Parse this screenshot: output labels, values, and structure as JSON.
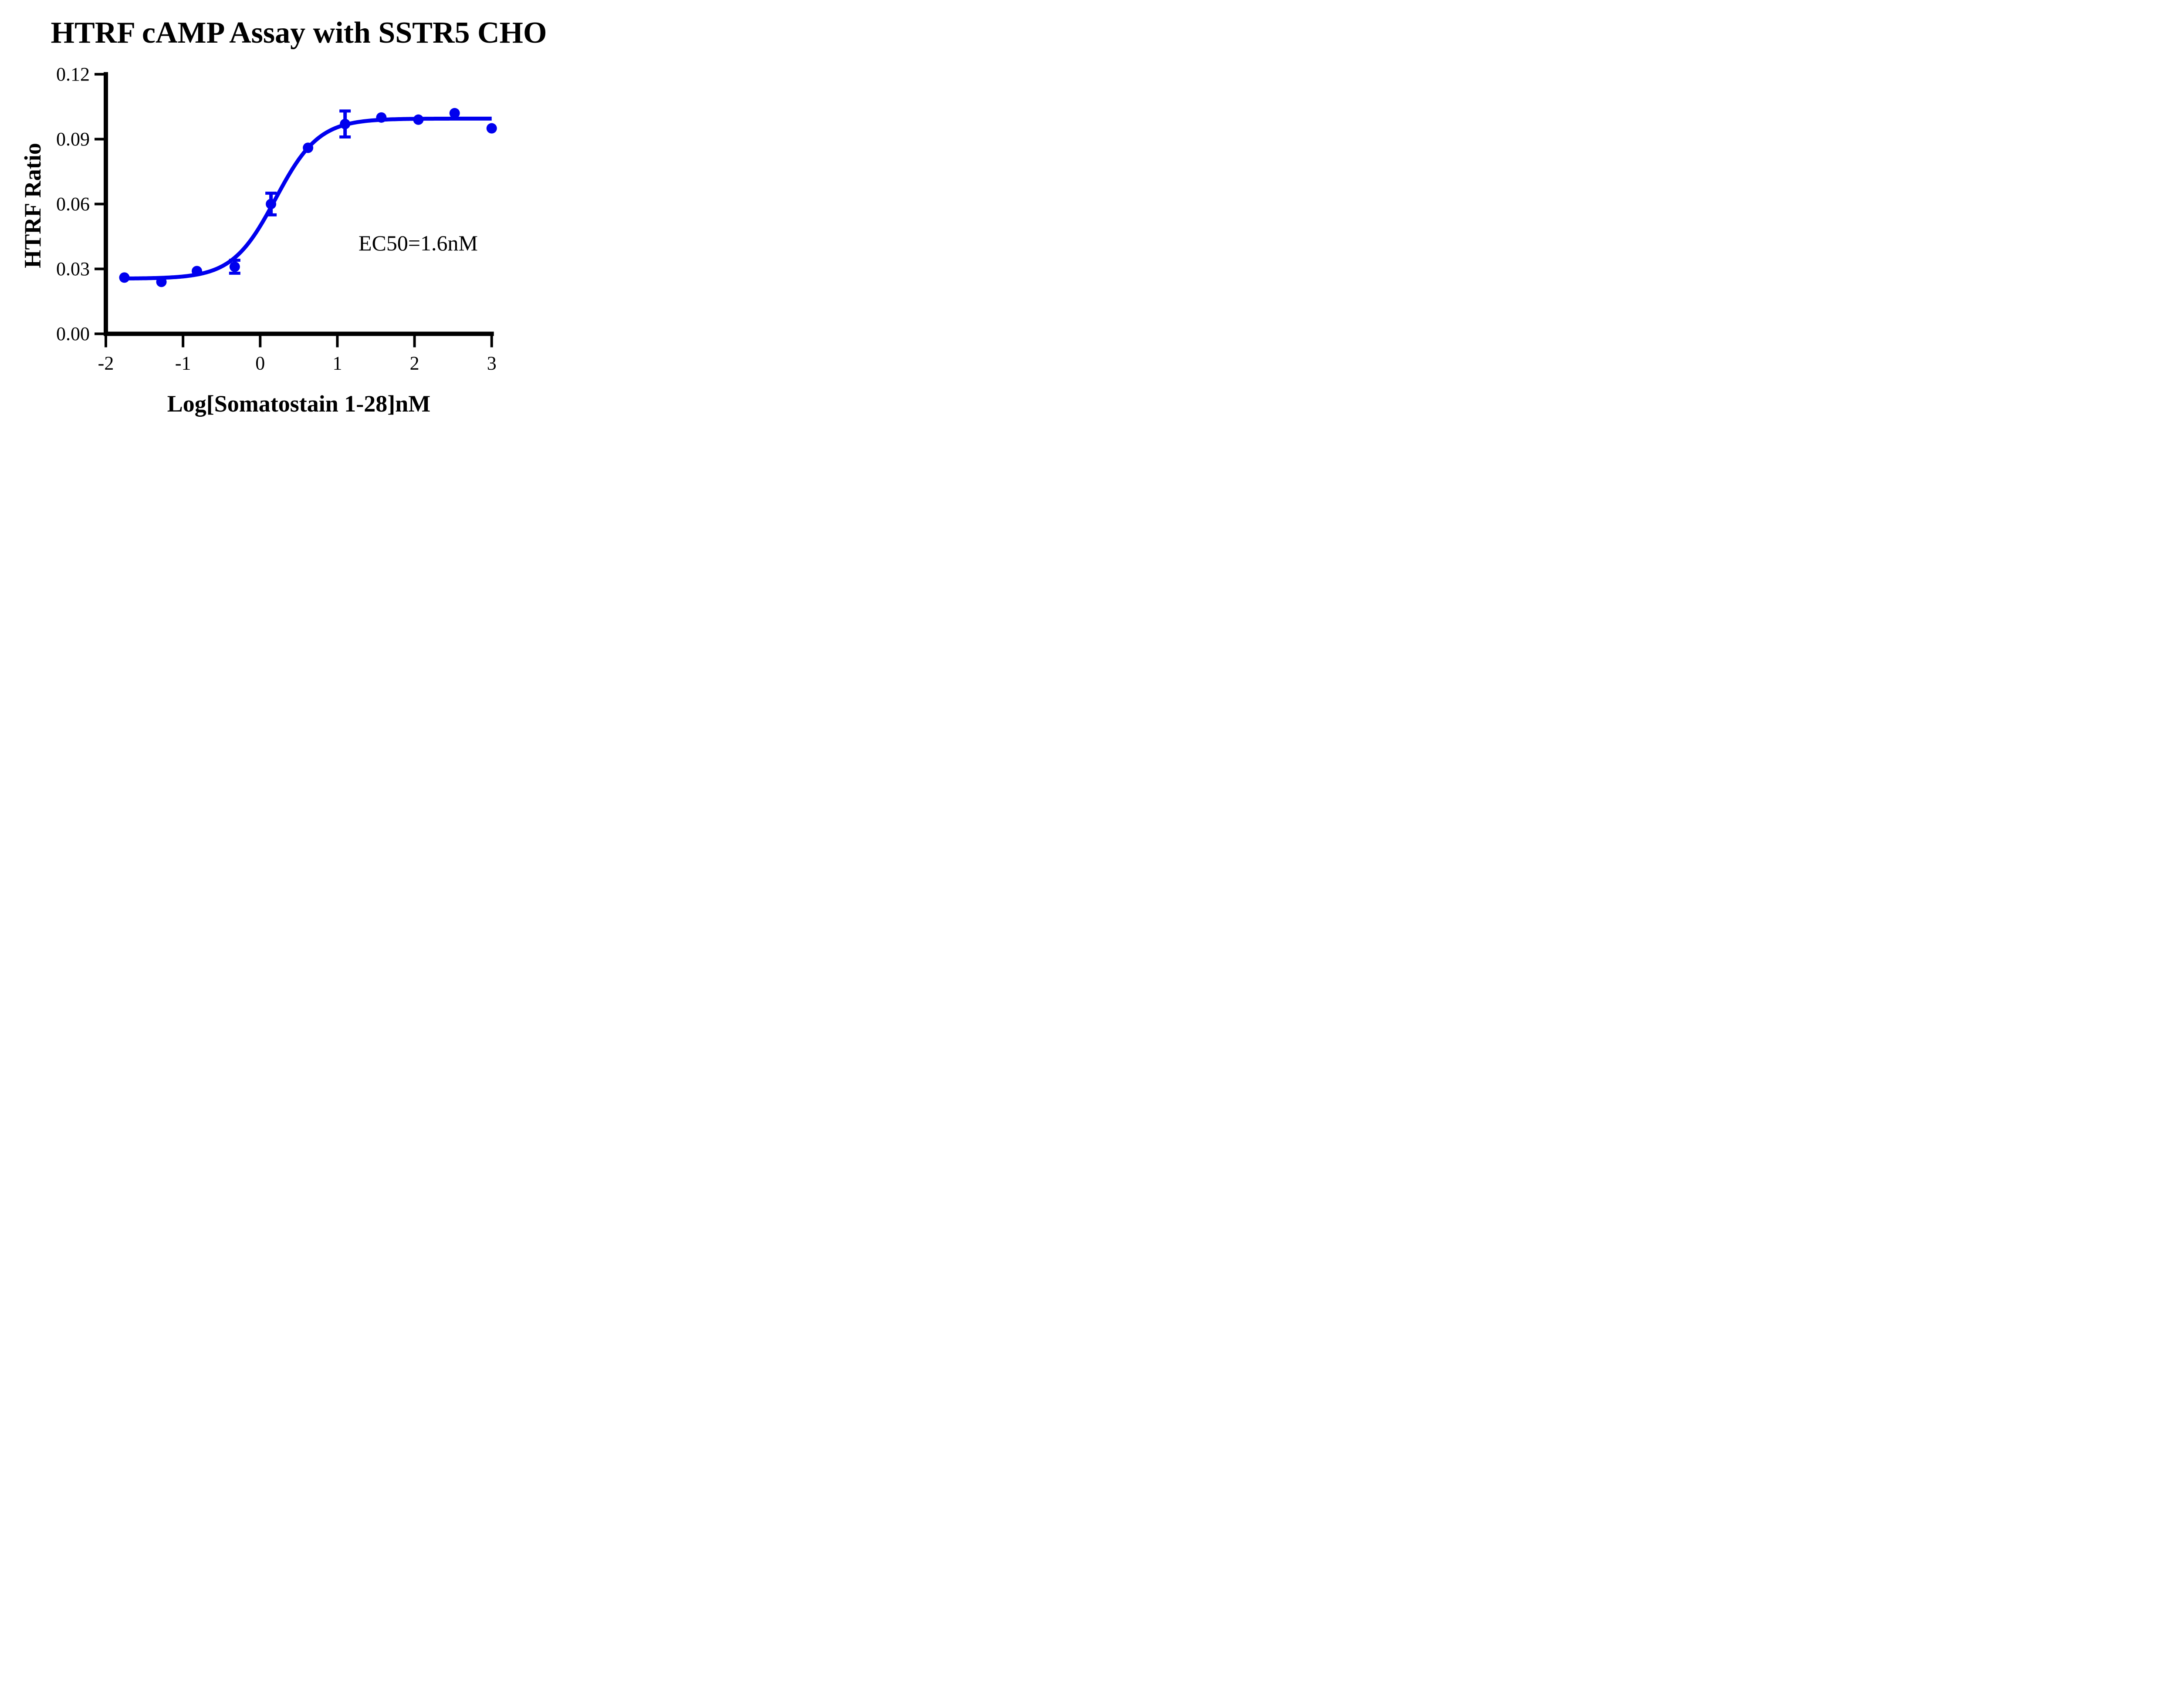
{
  "title": "HTRF cAMP Assay with SSTR5 CHO",
  "axes": {
    "x": {
      "label": "Log[Somatostain 1-28]nM",
      "tick_labels": [
        "-2",
        "-1",
        "0",
        "1",
        "2",
        "3"
      ]
    },
    "y": {
      "label": "HTRF Ratio",
      "tick_labels": [
        "0.00",
        "0.03",
        "0.06",
        "0.09",
        "0.12"
      ]
    }
  },
  "annotation": {
    "ec50": "EC50=1.6nM"
  },
  "colors": {
    "series": "#0000EE",
    "axis": "#000000",
    "background": "#FFFFFF"
  },
  "chart_data": {
    "type": "scatter",
    "title": "HTRF cAMP Assay with SSTR5 CHO",
    "xlabel": "Log[Somatostain 1-28]nM",
    "ylabel": "HTRF Ratio",
    "xlim": [
      -2,
      3
    ],
    "ylim": [
      0,
      0.12
    ],
    "x_ticks": [
      -2,
      -1,
      0,
      1,
      2,
      3
    ],
    "x_tick_labels": [
      "-2",
      "-1",
      "0",
      "1",
      "2",
      "3"
    ],
    "y_ticks": [
      0,
      0.03,
      0.06,
      0.09,
      0.12
    ],
    "y_tick_labels": [
      "0.00",
      "0.03",
      "0.06",
      "0.09",
      "0.12"
    ],
    "grid": false,
    "legend": false,
    "series": [
      {
        "color": "#0000EE",
        "marker": "circle",
        "x": [
          -1.76,
          -1.28,
          -0.82,
          -0.33,
          0.14,
          0.62,
          1.1,
          1.57,
          2.05,
          2.52,
          3.0
        ],
        "y": [
          0.026,
          0.024,
          0.029,
          0.031,
          0.06,
          0.086,
          0.097,
          0.1,
          0.099,
          0.102,
          0.095
        ],
        "y_err": [
          null,
          null,
          null,
          0.003,
          0.005,
          null,
          0.006,
          null,
          null,
          null,
          null
        ]
      }
    ],
    "fit_curve": {
      "model": "4PL",
      "bottom": 0.0255,
      "top": 0.0995,
      "logEC50": 0.2,
      "hill": 1.55,
      "x_start": -1.76,
      "x_end": 3.0,
      "ec50_nM": 1.6
    },
    "annotations": [
      {
        "text": "EC50=1.6nM",
        "x": 2.05,
        "y": 0.042
      }
    ]
  }
}
